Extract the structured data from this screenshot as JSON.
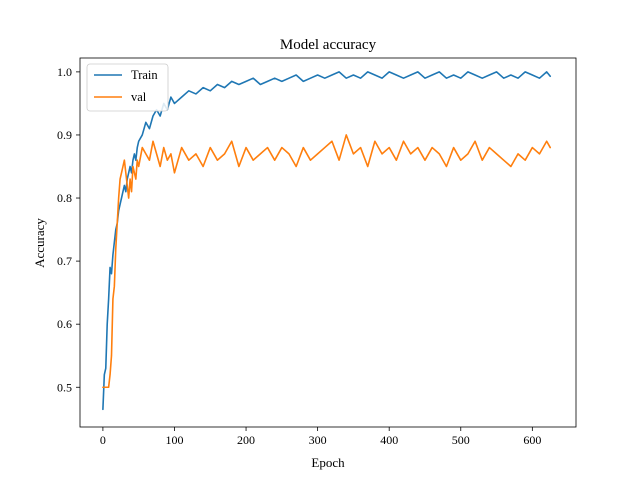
{
  "chart_data": {
    "type": "line",
    "title": "Model accuracy",
    "xlabel": "Epoch",
    "ylabel": "Accuracy",
    "xlim": [
      -32,
      661
    ],
    "ylim": [
      0.437,
      1.022
    ],
    "x_ticks": [
      0,
      100,
      200,
      300,
      400,
      500,
      600
    ],
    "y_ticks": [
      0.5,
      0.6,
      0.7,
      0.8,
      0.9,
      1.0
    ],
    "x_tick_labels": [
      "0",
      "100",
      "200",
      "300",
      "400",
      "500",
      "600"
    ],
    "y_tick_labels": [
      "0.5",
      "0.6",
      "0.7",
      "0.8",
      "0.9",
      "1.0"
    ],
    "grid": false,
    "legend": {
      "position": "upper-left"
    },
    "colors": {
      "Train": "#1f77b4",
      "val": "#ff7f0e"
    },
    "series": [
      {
        "name": "Train",
        "color": "#1f77b4",
        "x": [
          0,
          2,
          4,
          6,
          8,
          10,
          12,
          14,
          16,
          18,
          20,
          22,
          24,
          26,
          28,
          30,
          32,
          34,
          36,
          38,
          40,
          42,
          44,
          46,
          48,
          50,
          55,
          60,
          65,
          70,
          75,
          80,
          85,
          90,
          95,
          100,
          110,
          120,
          130,
          140,
          150,
          160,
          170,
          180,
          190,
          200,
          210,
          220,
          230,
          240,
          250,
          260,
          270,
          280,
          290,
          300,
          310,
          320,
          330,
          340,
          350,
          360,
          370,
          380,
          390,
          400,
          410,
          420,
          430,
          440,
          450,
          460,
          470,
          480,
          490,
          500,
          510,
          520,
          530,
          540,
          550,
          560,
          570,
          580,
          590,
          600,
          610,
          620,
          625
        ],
        "values": [
          0.465,
          0.52,
          0.53,
          0.6,
          0.64,
          0.69,
          0.68,
          0.71,
          0.73,
          0.75,
          0.76,
          0.78,
          0.79,
          0.8,
          0.81,
          0.82,
          0.81,
          0.83,
          0.84,
          0.85,
          0.84,
          0.86,
          0.87,
          0.86,
          0.88,
          0.89,
          0.9,
          0.92,
          0.91,
          0.93,
          0.94,
          0.93,
          0.95,
          0.94,
          0.96,
          0.95,
          0.96,
          0.97,
          0.965,
          0.975,
          0.97,
          0.98,
          0.975,
          0.985,
          0.98,
          0.985,
          0.99,
          0.98,
          0.985,
          0.99,
          0.985,
          0.99,
          0.995,
          0.985,
          0.99,
          0.995,
          0.99,
          0.995,
          1.0,
          0.99,
          0.995,
          0.99,
          1.0,
          0.995,
          0.99,
          1.0,
          0.995,
          0.99,
          0.995,
          1.0,
          0.99,
          0.995,
          1.0,
          0.99,
          0.995,
          0.99,
          1.0,
          0.995,
          0.99,
          0.995,
          1.0,
          0.99,
          0.995,
          0.99,
          1.0,
          0.995,
          0.99,
          1.0,
          0.993
        ]
      },
      {
        "name": "val",
        "color": "#ff7f0e",
        "x": [
          0,
          2,
          4,
          6,
          8,
          10,
          12,
          14,
          16,
          18,
          20,
          22,
          24,
          26,
          28,
          30,
          32,
          34,
          36,
          38,
          40,
          42,
          44,
          46,
          48,
          50,
          55,
          60,
          65,
          70,
          75,
          80,
          85,
          90,
          95,
          100,
          110,
          120,
          130,
          140,
          150,
          160,
          170,
          180,
          190,
          200,
          210,
          220,
          230,
          240,
          250,
          260,
          270,
          280,
          290,
          300,
          310,
          320,
          330,
          340,
          350,
          360,
          370,
          380,
          390,
          400,
          410,
          420,
          430,
          440,
          450,
          460,
          470,
          480,
          490,
          500,
          510,
          520,
          530,
          540,
          550,
          560,
          570,
          580,
          590,
          600,
          610,
          620,
          625
        ],
        "values": [
          0.5,
          0.5,
          0.5,
          0.5,
          0.5,
          0.52,
          0.55,
          0.64,
          0.66,
          0.72,
          0.76,
          0.8,
          0.83,
          0.84,
          0.85,
          0.86,
          0.84,
          0.82,
          0.8,
          0.83,
          0.81,
          0.85,
          0.84,
          0.83,
          0.86,
          0.85,
          0.88,
          0.87,
          0.86,
          0.89,
          0.87,
          0.85,
          0.88,
          0.86,
          0.87,
          0.84,
          0.88,
          0.86,
          0.87,
          0.85,
          0.88,
          0.86,
          0.87,
          0.89,
          0.85,
          0.88,
          0.86,
          0.87,
          0.88,
          0.86,
          0.88,
          0.87,
          0.85,
          0.88,
          0.86,
          0.87,
          0.88,
          0.89,
          0.86,
          0.9,
          0.87,
          0.88,
          0.85,
          0.89,
          0.87,
          0.88,
          0.86,
          0.89,
          0.87,
          0.88,
          0.86,
          0.88,
          0.87,
          0.85,
          0.88,
          0.86,
          0.87,
          0.89,
          0.86,
          0.88,
          0.87,
          0.86,
          0.85,
          0.87,
          0.86,
          0.88,
          0.87,
          0.89,
          0.88
        ]
      }
    ]
  }
}
